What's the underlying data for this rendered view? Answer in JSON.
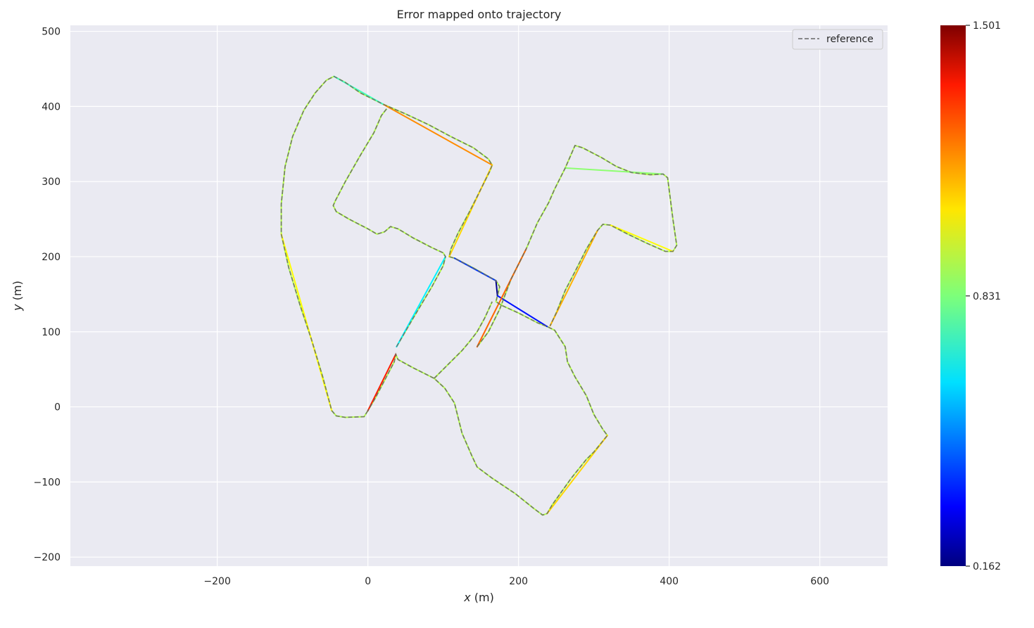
{
  "chart_data": {
    "type": "line",
    "title": "Error mapped onto trajectory",
    "xlabel_var": "x",
    "xlabel_unit": " (m)",
    "ylabel_var": "y",
    "ylabel_unit": " (m)",
    "xlim": [
      -395,
      690
    ],
    "ylim": [
      -212,
      508
    ],
    "xticks": [
      -200,
      0,
      200,
      400,
      600
    ],
    "yticks": [
      -200,
      -100,
      0,
      100,
      200,
      300,
      400,
      500
    ],
    "grid": true,
    "legend": {
      "position": "top-right",
      "entries": [
        "reference"
      ]
    },
    "colorbar": {
      "min": 0.162,
      "max": 1.501,
      "ticks": [
        1.501,
        0.831,
        0.162
      ],
      "colormap": "jet"
    },
    "series": [
      {
        "name": "reference",
        "style": "dashed",
        "color": "#666666",
        "points": [
          [
            0,
            -5
          ],
          [
            -5,
            -13
          ],
          [
            -30,
            -14
          ],
          [
            -42,
            -12
          ],
          [
            -48,
            -5
          ],
          [
            -60,
            40
          ],
          [
            -75,
            90
          ],
          [
            -90,
            135
          ],
          [
            -105,
            185
          ],
          [
            -115,
            230
          ],
          [
            -115,
            270
          ],
          [
            -110,
            320
          ],
          [
            -100,
            360
          ],
          [
            -85,
            395
          ],
          [
            -70,
            418
          ],
          [
            -55,
            435
          ],
          [
            -45,
            440
          ],
          [
            -30,
            432
          ],
          [
            -10,
            418
          ],
          [
            20,
            403
          ],
          [
            50,
            390
          ],
          [
            80,
            376
          ],
          [
            110,
            360
          ],
          [
            140,
            345
          ],
          [
            160,
            330
          ],
          [
            165,
            322
          ],
          [
            162,
            314
          ],
          [
            150,
            290
          ],
          [
            135,
            260
          ],
          [
            120,
            232
          ],
          [
            110,
            210
          ],
          [
            108,
            200
          ],
          [
            115,
            198
          ],
          [
            140,
            185
          ],
          [
            170,
            168
          ],
          [
            175,
            160
          ],
          [
            172,
            148
          ],
          [
            170,
            140
          ],
          [
            178,
            135
          ],
          [
            200,
            125
          ],
          [
            225,
            112
          ],
          [
            238,
            107
          ],
          [
            248,
            102
          ],
          [
            262,
            80
          ],
          [
            265,
            60
          ],
          [
            275,
            40
          ],
          [
            290,
            15
          ],
          [
            300,
            -10
          ],
          [
            312,
            -30
          ],
          [
            318,
            -38
          ],
          [
            300,
            -60
          ],
          [
            290,
            -70
          ],
          [
            270,
            -95
          ],
          [
            245,
            -130
          ],
          [
            238,
            -142
          ],
          [
            232,
            -144
          ],
          [
            220,
            -135
          ],
          [
            195,
            -115
          ],
          [
            165,
            -95
          ],
          [
            145,
            -80
          ],
          [
            138,
            -65
          ],
          [
            125,
            -35
          ],
          [
            115,
            5
          ],
          [
            102,
            25
          ],
          [
            88,
            38
          ],
          [
            60,
            52
          ],
          [
            40,
            63
          ],
          [
            37,
            70
          ],
          [
            35,
            60
          ],
          [
            22,
            35
          ],
          [
            10,
            12
          ],
          [
            0,
            -5
          ]
        ]
      },
      {
        "name": "",
        "style": "dashed",
        "color": "#666666",
        "points": [
          [
            38,
            80
          ],
          [
            60,
            118
          ],
          [
            85,
            160
          ],
          [
            100,
            188
          ],
          [
            103,
            200
          ],
          [
            100,
            205
          ],
          [
            85,
            212
          ],
          [
            60,
            225
          ],
          [
            40,
            237
          ],
          [
            30,
            240
          ],
          [
            22,
            233
          ],
          [
            12,
            230
          ],
          [
            0,
            237
          ],
          [
            -25,
            250
          ],
          [
            -42,
            260
          ],
          [
            -46,
            268
          ],
          [
            -43,
            275
          ],
          [
            -30,
            300
          ],
          [
            -10,
            335
          ],
          [
            8,
            365
          ],
          [
            18,
            388
          ],
          [
            25,
            397
          ]
        ]
      },
      {
        "name": "",
        "style": "dashed",
        "color": "#666666",
        "points": [
          [
            145,
            80
          ],
          [
            160,
            100
          ],
          [
            175,
            130
          ],
          [
            190,
            170
          ],
          [
            210,
            210
          ],
          [
            225,
            245
          ],
          [
            240,
            272
          ],
          [
            248,
            290
          ],
          [
            262,
            318
          ],
          [
            275,
            348
          ],
          [
            285,
            345
          ],
          [
            310,
            332
          ],
          [
            330,
            320
          ],
          [
            350,
            312
          ],
          [
            375,
            309
          ],
          [
            392,
            310
          ],
          [
            398,
            305
          ],
          [
            405,
            250
          ],
          [
            410,
            215
          ],
          [
            405,
            207
          ],
          [
            395,
            207
          ],
          [
            370,
            218
          ],
          [
            345,
            230
          ],
          [
            322,
            242
          ],
          [
            312,
            243
          ],
          [
            305,
            235
          ],
          [
            290,
            210
          ],
          [
            275,
            180
          ],
          [
            262,
            155
          ],
          [
            250,
            125
          ],
          [
            242,
            108
          ]
        ]
      },
      {
        "name": "",
        "style": "dashed",
        "color": "#666666",
        "points": [
          [
            88,
            38
          ],
          [
            105,
            55
          ],
          [
            125,
            75
          ],
          [
            135,
            87
          ],
          [
            145,
            100
          ],
          [
            155,
            118
          ],
          [
            165,
            140
          ]
        ]
      }
    ],
    "error_segments": [
      {
        "from": [
          170,
          168
        ],
        "to": [
          172,
          148
        ],
        "value": 0.18
      },
      {
        "from": [
          115,
          198
        ],
        "to": [
          170,
          168
        ],
        "value": 0.4
      },
      {
        "from": [
          172,
          148
        ],
        "to": [
          238,
          107
        ],
        "value": 0.35
      },
      {
        "from": [
          0,
          -5
        ],
        "to": [
          37,
          70
        ],
        "value": 1.3
      },
      {
        "from": [
          20,
          403
        ],
        "to": [
          165,
          322
        ],
        "value": 1.15
      },
      {
        "from": [
          165,
          322
        ],
        "to": [
          108,
          200
        ],
        "value": 1.05
      },
      {
        "from": [
          -45,
          440
        ],
        "to": [
          20,
          403
        ],
        "value": 0.75
      },
      {
        "from": [
          38,
          80
        ],
        "to": [
          103,
          200
        ],
        "value": 0.65
      },
      {
        "from": [
          262,
          318
        ],
        "to": [
          392,
          310
        ],
        "value": 0.85
      },
      {
        "from": [
          322,
          242
        ],
        "to": [
          405,
          207
        ],
        "value": 1.0
      },
      {
        "from": [
          242,
          108
        ],
        "to": [
          305,
          235
        ],
        "value": 1.1
      },
      {
        "from": [
          145,
          80
        ],
        "to": [
          210,
          210
        ],
        "value": 1.2
      },
      {
        "from": [
          238,
          -142
        ],
        "to": [
          318,
          -38
        ],
        "value": 1.05
      },
      {
        "from": [
          -115,
          230
        ],
        "to": [
          -48,
          -5
        ],
        "value": 1.0
      }
    ]
  }
}
